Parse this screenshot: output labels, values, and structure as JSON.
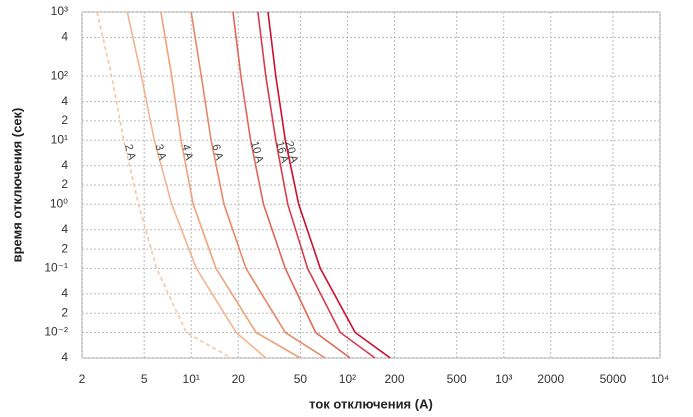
{
  "chart_data": {
    "type": "line",
    "xlabel": "ток отключения (A)",
    "ylabel": "время отключения (сек)",
    "xlog": true,
    "ylog": true,
    "grid": true,
    "xlim": [
      2,
      10000
    ],
    "ylim": [
      0.004,
      1000
    ],
    "xticks": [
      2,
      5,
      {
        "value": 10,
        "label": "10¹"
      },
      20.0,
      50.0,
      {
        "value": 100,
        "label": "10²"
      },
      200.0,
      500.0,
      {
        "value": 1000,
        "label": "10³"
      },
      2000.0,
      5000.0,
      {
        "value": 10000,
        "label": "10⁴"
      }
    ],
    "yticks": [
      {
        "value": 1000,
        "label": "10³"
      },
      {
        "value": 400,
        "label": "4"
      },
      {
        "value": 100,
        "label": "10²"
      },
      {
        "value": 40,
        "label": "4"
      },
      {
        "value": 20,
        "label": "2"
      },
      {
        "value": 10,
        "label": "10¹"
      },
      4,
      2,
      {
        "value": 1,
        "label": "10⁰"
      },
      {
        "value": 0.4,
        "label": "4"
      },
      {
        "value": 0.2,
        "label": "2"
      },
      {
        "value": 0.1,
        "label": "10⁻¹"
      },
      {
        "value": 0.04,
        "label": "4"
      },
      {
        "value": 0.02,
        "label": "2"
      },
      {
        "value": 0.01,
        "label": "10⁻²"
      },
      {
        "value": 0.004,
        "label": "4"
      }
    ],
    "series": [
      {
        "name": "2 A",
        "color": "#f4c6a6",
        "dashed": true,
        "x": [
          2.5,
          3.1,
          3.7,
          4.6,
          6,
          9.3,
          18
        ],
        "values": [
          1000,
          100,
          10,
          1,
          0.1,
          0.01,
          0.004
        ]
      },
      {
        "name": "3 A",
        "color": "#f2b48e",
        "dashed": false,
        "x": [
          3.9,
          4.8,
          5.8,
          7.5,
          10.8,
          19.4,
          30
        ],
        "values": [
          1000,
          100,
          10,
          1,
          0.1,
          0.01,
          0.004
        ]
      },
      {
        "name": "4 A",
        "color": "#eea27a",
        "dashed": false,
        "x": [
          6.4,
          7.5,
          8.6,
          10.3,
          14.4,
          26,
          50
        ],
        "values": [
          1000,
          100,
          10,
          1,
          0.1,
          0.01,
          0.004
        ]
      },
      {
        "name": "6 A",
        "color": "#e88868",
        "dashed": false,
        "x": [
          10,
          11.6,
          13.4,
          16.2,
          22.4,
          40,
          72
        ],
        "values": [
          1000,
          100,
          10,
          1,
          0.1,
          0.01,
          0.004
        ]
      },
      {
        "name": "10 A",
        "color": "#e06858",
        "dashed": false,
        "x": [
          18.5,
          20.8,
          24,
          29,
          40,
          62.5,
          104
        ],
        "values": [
          1000,
          100,
          10,
          1,
          0.1,
          0.01,
          0.004
        ]
      },
      {
        "name": "16 A",
        "color": "#d63e4e",
        "dashed": false,
        "x": [
          26.7,
          30,
          34.8,
          41.5,
          55.6,
          90,
          150
        ],
        "values": [
          1000,
          100,
          10,
          1,
          0.1,
          0.01,
          0.004
        ]
      },
      {
        "name": "20 A",
        "color": "#cc1030",
        "dashed": false,
        "x": [
          31,
          34.8,
          40,
          48.7,
          67,
          112,
          188
        ],
        "values": [
          1000,
          100,
          10,
          1,
          0.1,
          0.01,
          0.004
        ]
      }
    ]
  }
}
